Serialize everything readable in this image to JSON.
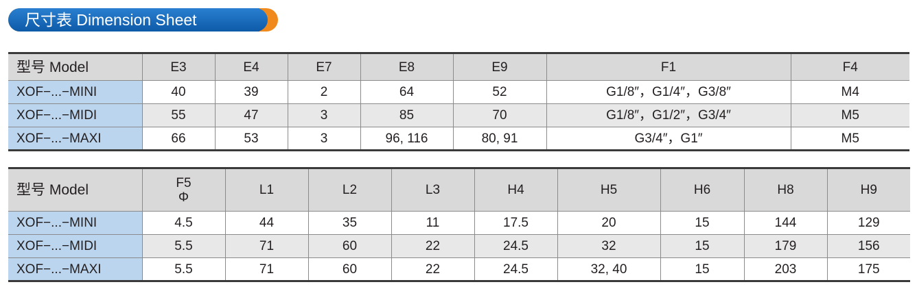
{
  "header": {
    "title": "尺寸表 Dimension Sheet"
  },
  "tables": [
    {
      "headers": [
        "型号 Model",
        "E3",
        "E4",
        "E7",
        "E8",
        "E9",
        "F1",
        "F4"
      ],
      "rows": [
        [
          "XOF−...−MINI",
          "40",
          "39",
          "2",
          "64",
          "52",
          "G1/8″，G1/4″，G3/8″",
          "M4"
        ],
        [
          "XOF−...−MIDI",
          "55",
          "47",
          "3",
          "85",
          "70",
          "G1/8″，G1/2″，G3/4″",
          "M5"
        ],
        [
          "XOF−...−MAXI",
          "66",
          "53",
          "3",
          "96, 116",
          "80, 91",
          "G3/4″，G1″",
          "M5"
        ]
      ]
    },
    {
      "headers": [
        "型号 Model",
        [
          "F5",
          "Φ"
        ],
        "L1",
        "L2",
        "L3",
        "H4",
        "H5",
        "H6",
        "H8",
        "H9"
      ],
      "rows": [
        [
          "XOF−...−MINI",
          "4.5",
          "44",
          "35",
          "11",
          "17.5",
          "20",
          "15",
          "144",
          "129"
        ],
        [
          "XOF−...−MIDI",
          "5.5",
          "71",
          "60",
          "22",
          "24.5",
          "32",
          "15",
          "179",
          "156"
        ],
        [
          "XOF−...−MAXI",
          "5.5",
          "71",
          "60",
          "22",
          "24.5",
          "32, 40",
          "15",
          "203",
          "175"
        ]
      ]
    }
  ]
}
